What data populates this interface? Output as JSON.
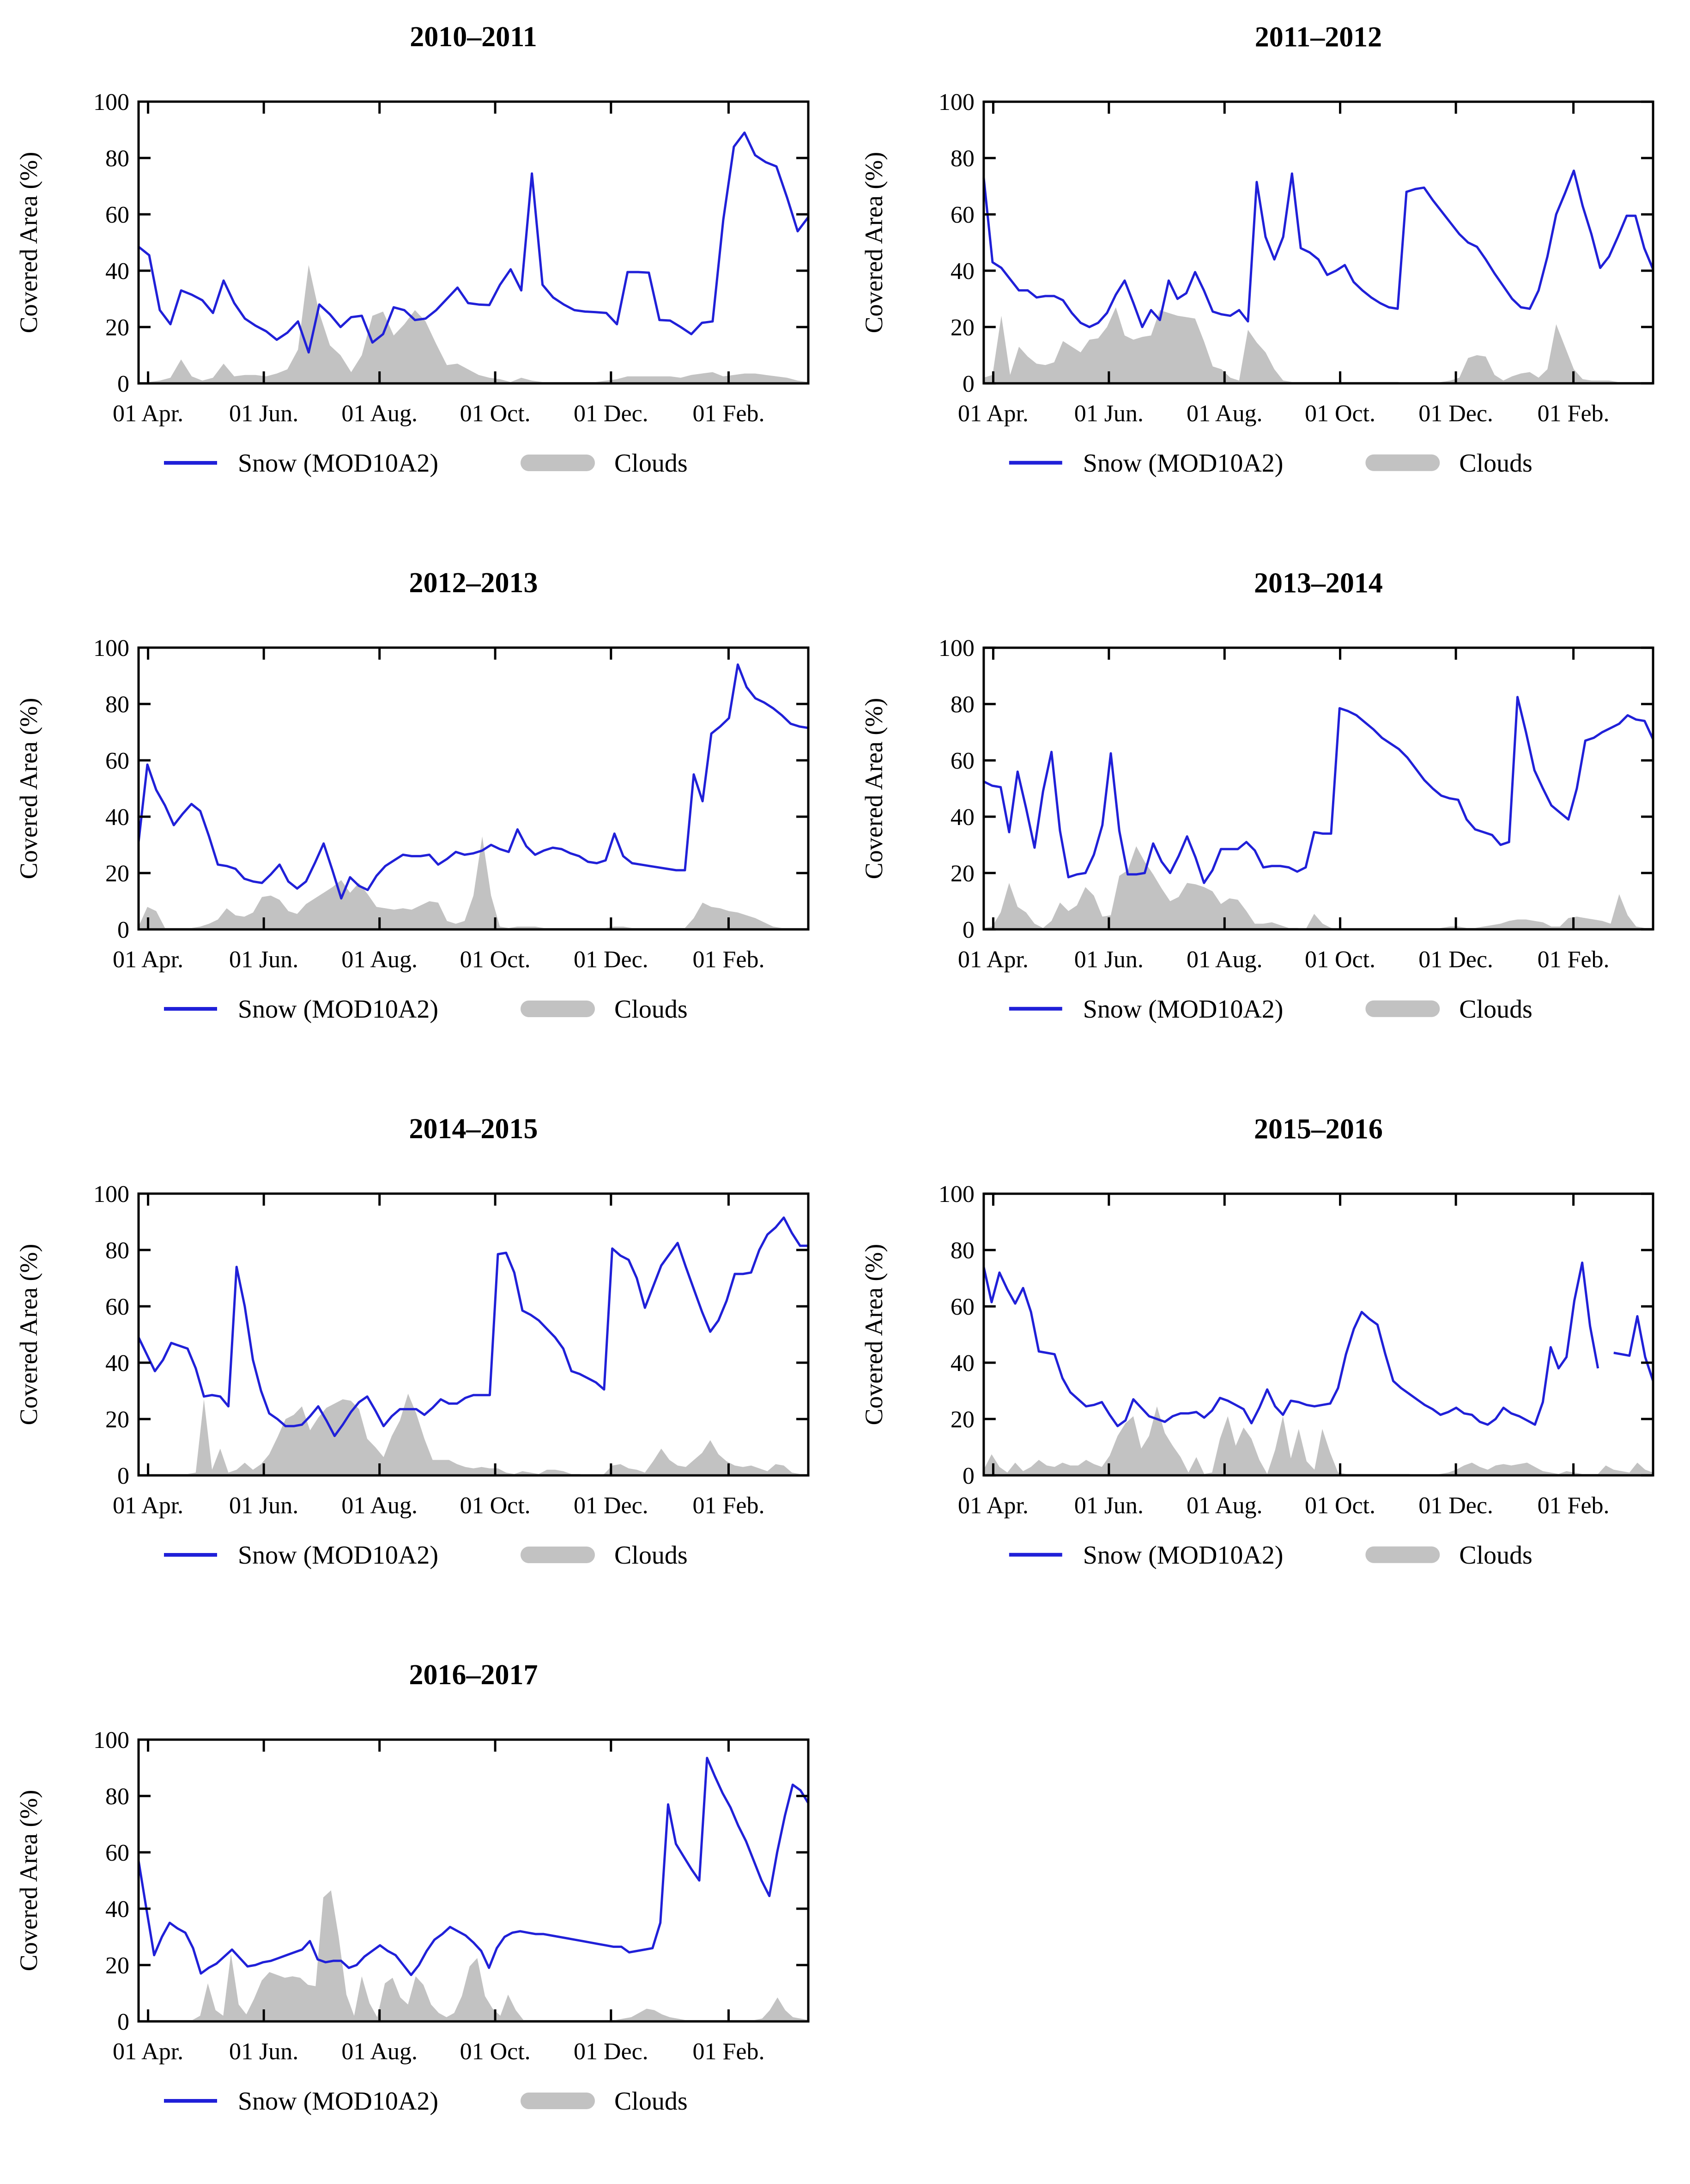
{
  "page": {
    "background": "#ffffff"
  },
  "style": {
    "snow_color": "#2020d8",
    "cloud_color": "#c2c2c2",
    "axis_color": "#000000",
    "ylim": [
      0,
      100
    ]
  },
  "axes": {
    "ylabel": "Covered Area (%)",
    "y_ticks": [
      0,
      20,
      40,
      60,
      80,
      100
    ],
    "x_ticks": [
      {
        "label": "01 Apr.",
        "f": 0.0142
      },
      {
        "label": "01 Jun.",
        "f": 0.187
      },
      {
        "label": "01 Aug.",
        "f": 0.3598
      },
      {
        "label": "01 Oct.",
        "f": 0.5325
      },
      {
        "label": "01 Dec.",
        "f": 0.7054
      },
      {
        "label": "01 Feb.",
        "f": 0.881
      }
    ]
  },
  "legend": {
    "snow_label": "Snow (MOD10A2)",
    "clouds_label": "Clouds"
  },
  "chart_data": [
    {
      "type": "line+area",
      "title": "2010–2011",
      "snow": [
        48.5,
        45.5,
        26,
        21,
        33,
        31.5,
        29.5,
        25,
        36.5,
        28.5,
        23,
        20.5,
        18.5,
        15.5,
        18,
        22,
        11,
        28,
        24.5,
        20,
        23.5,
        24,
        14.5,
        17.5,
        27,
        26,
        22.5,
        23,
        26,
        30,
        34,
        28.5,
        28,
        27.8,
        35,
        40.5,
        33,
        74.5,
        35,
        30.5,
        28,
        26,
        25.5,
        25.3,
        25,
        21,
        39.5,
        39.5,
        39.3,
        22.5,
        22.3,
        20,
        17.5,
        21.5,
        22,
        58,
        84,
        89,
        81,
        78.5,
        77,
        66,
        54,
        59
      ],
      "clouds": [
        0.5,
        0.5,
        1,
        2,
        8.5,
        2.5,
        1,
        2,
        7,
        2.5,
        3,
        3,
        2.5,
        3.5,
        5,
        12,
        42,
        25,
        13.5,
        10,
        4,
        10,
        24,
        25.5,
        17,
        21,
        26,
        22,
        14,
        6.5,
        7,
        5,
        3,
        2,
        1.5,
        0.5,
        2,
        1,
        0.5,
        0.5,
        0.5,
        0.5,
        0.5,
        0.5,
        1,
        1.5,
        2.5,
        2.5,
        2.5,
        2.5,
        2.5,
        2,
        3,
        3.5,
        4,
        2.5,
        3,
        3.5,
        3.5,
        3,
        2.5,
        2,
        1,
        0.5
      ]
    },
    {
      "type": "line+area",
      "title": "2011–2012",
      "snow": [
        73,
        43,
        41,
        37,
        33,
        33,
        30.5,
        31,
        31,
        29.5,
        25,
        21.5,
        20,
        21.5,
        25,
        31.5,
        36.5,
        28.5,
        20,
        26,
        22.5,
        36.5,
        30,
        32,
        39.5,
        33,
        25.5,
        24.5,
        24,
        26,
        22,
        71.5,
        52,
        44,
        52,
        74.5,
        48,
        46.5,
        44,
        38.5,
        40,
        42,
        36,
        33,
        30.5,
        28.5,
        27,
        26.5,
        68,
        69,
        69.5,
        65,
        61,
        57,
        53,
        50,
        48.5,
        44,
        39,
        34.5,
        30,
        27,
        26.5,
        33,
        45,
        60,
        67.5,
        75.5,
        63,
        53,
        41,
        45,
        52,
        59.5,
        59.5,
        48,
        40.5
      ],
      "clouds": [
        2,
        3,
        24,
        3,
        13,
        9.5,
        7,
        6.5,
        7.5,
        15,
        13,
        11,
        15.5,
        16,
        20,
        27,
        17,
        15.5,
        16.5,
        17,
        26,
        25,
        24,
        23.5,
        23,
        15,
        6,
        5,
        2,
        1,
        19,
        14.5,
        11,
        5,
        1,
        0.5,
        0.5,
        0.5,
        0.5,
        0.5,
        0.5,
        0.5,
        0.5,
        0.5,
        0.5,
        0.5,
        0.5,
        0.5,
        0,
        0,
        0,
        0,
        0.5,
        1,
        2,
        9,
        10,
        9.5,
        3,
        1,
        2.5,
        3.5,
        4,
        2,
        5,
        21,
        13,
        5,
        1.5,
        1,
        1,
        1,
        0.5,
        0.5,
        0.5,
        0.5,
        0.5
      ]
    },
    {
      "type": "line+area",
      "title": "2012–2013",
      "snow": [
        31,
        58.5,
        49.5,
        44,
        37,
        41,
        44.5,
        42,
        33,
        23,
        22.5,
        21.5,
        18,
        17,
        16.5,
        19.5,
        23,
        17,
        14.5,
        17,
        23.5,
        30.5,
        21,
        11,
        18.5,
        15.5,
        14,
        19,
        22.5,
        24.5,
        26.5,
        26,
        26,
        26.5,
        23,
        25,
        27.5,
        26.5,
        27,
        28,
        30,
        28.5,
        27.5,
        35.5,
        29.5,
        26.5,
        28,
        29,
        28.5,
        27,
        26,
        24,
        23.5,
        24.5,
        34,
        26,
        23.5,
        23,
        22.5,
        22,
        21.5,
        21,
        21,
        55,
        45.5,
        69.5,
        72,
        75,
        94,
        86,
        82,
        80.5,
        78.5,
        76,
        73,
        72,
        71.5
      ],
      "clouds": [
        1,
        8,
        6.5,
        0.5,
        0.5,
        0.5,
        0.5,
        1,
        2,
        3.5,
        7.5,
        5,
        4.5,
        6,
        11.5,
        12,
        10.5,
        6.5,
        5.5,
        9,
        11,
        13,
        15,
        17.5,
        13,
        16.5,
        12.5,
        8,
        7.5,
        7,
        7.5,
        7,
        8.5,
        10,
        9.5,
        3,
        2,
        3,
        12,
        33,
        12,
        1,
        0.5,
        1,
        1,
        1,
        0.5,
        0.5,
        0.5,
        0.5,
        0.5,
        0.5,
        0.5,
        0.5,
        1,
        1,
        0.5,
        0.5,
        0.5,
        0.5,
        0.5,
        0.5,
        0.5,
        4,
        9.5,
        8,
        7.5,
        6.5,
        6,
        5,
        4,
        2.5,
        1,
        0.5,
        0.5,
        0.5,
        0.5
      ]
    },
    {
      "type": "line+area",
      "title": "2013–2014",
      "snow": [
        52.5,
        51,
        50.5,
        34.5,
        56,
        43,
        29,
        49,
        63,
        35,
        18.5,
        19.5,
        20,
        26.5,
        37,
        62.5,
        35,
        19.5,
        19.5,
        20,
        30.5,
        24,
        20,
        26,
        33,
        25.5,
        16.5,
        21,
        28.5,
        28.5,
        28.5,
        31,
        28,
        22,
        22.5,
        22.5,
        22,
        20.5,
        22,
        34.5,
        34,
        34,
        78.5,
        77.5,
        76,
        73.5,
        71,
        68,
        66,
        64,
        61,
        57,
        53,
        50,
        47.5,
        46.5,
        46,
        39,
        35.5,
        34.5,
        33.5,
        30,
        31,
        82.5,
        70,
        56.5,
        50,
        44,
        41.5,
        39,
        50,
        67,
        68,
        70,
        71.5,
        73,
        76,
        74.5,
        74,
        67.5
      ],
      "clouds": [
        0.5,
        1,
        6,
        16.5,
        8,
        6,
        2,
        0.5,
        3,
        9.5,
        6.5,
        8.5,
        15,
        12,
        4.5,
        5,
        19,
        21,
        29.5,
        24,
        19.5,
        14.5,
        10,
        11.5,
        16.5,
        16,
        15,
        13.5,
        9,
        11,
        10.5,
        6.5,
        2,
        2,
        2.5,
        1.5,
        0.5,
        0.5,
        0,
        5.5,
        2,
        0.5,
        0,
        0,
        0,
        0,
        0,
        0,
        0,
        0,
        0,
        0,
        0,
        0,
        0.5,
        1,
        1,
        0.5,
        0.5,
        1,
        1.5,
        2,
        3,
        3.5,
        3.5,
        3,
        2.5,
        1,
        1,
        4,
        4.5,
        4,
        3.5,
        3,
        2,
        12.5,
        5,
        1,
        0.5,
        0.5
      ]
    },
    {
      "type": "line+area",
      "title": "2014–2015",
      "snow": [
        49,
        43,
        37,
        41,
        47,
        46,
        45,
        38,
        28,
        28.5,
        28,
        24.5,
        74,
        60,
        41,
        30,
        22,
        20,
        17.5,
        17.5,
        18,
        21,
        24.5,
        19.5,
        14,
        18,
        22.5,
        26,
        28,
        23,
        17.5,
        21,
        23.5,
        23.5,
        23.5,
        21.5,
        24,
        27,
        25.5,
        25.5,
        27.5,
        28.5,
        28.5,
        28.5,
        78.5,
        79,
        72,
        58.5,
        57,
        55,
        52,
        49,
        45,
        37,
        36,
        34.5,
        33,
        30.5,
        80.5,
        78,
        76.5,
        70,
        59.5,
        67,
        74.5,
        78.5,
        82.5,
        74,
        66,
        58,
        51,
        55,
        62,
        71.5,
        71.5,
        72,
        80,
        85.5,
        88,
        91.5,
        86,
        81.5,
        81.5
      ],
      "clouds": [
        0.5,
        0.5,
        0.5,
        0.5,
        0.5,
        0.5,
        0.5,
        1,
        27,
        2,
        9.5,
        1,
        2,
        4.5,
        2,
        4,
        7.5,
        13.5,
        20,
        21.5,
        24.5,
        16,
        20.5,
        24,
        25.5,
        27,
        26.5,
        23.5,
        13,
        10,
        6.5,
        14,
        19.5,
        29,
        22,
        13,
        5.5,
        5.5,
        5.5,
        4,
        3,
        2.5,
        3,
        2.5,
        2.5,
        1,
        0.5,
        1.5,
        1,
        0.5,
        2,
        2,
        1.5,
        0.5,
        0.5,
        0,
        0,
        0.5,
        3.5,
        4,
        2.5,
        2,
        1,
        5,
        9.5,
        5.5,
        3.5,
        3,
        5.5,
        8,
        12.5,
        7.5,
        5,
        3.5,
        3,
        3.5,
        2.5,
        1.5,
        4,
        3.5,
        1,
        0.5,
        0.5
      ]
    },
    {
      "type": "line+area",
      "title": "2015–2016",
      "snow": [
        74,
        61.5,
        72,
        66,
        61,
        66.5,
        58,
        44,
        43.5,
        43,
        34.5,
        29.5,
        27,
        24.5,
        25,
        26,
        21.5,
        17.5,
        19.5,
        27,
        24,
        21,
        20,
        19,
        21,
        22,
        22,
        22.5,
        20.5,
        23,
        27.5,
        26.5,
        25,
        23.5,
        18.5,
        24,
        30.5,
        24.5,
        21.5,
        26.5,
        26,
        25,
        24.5,
        25,
        25.5,
        31,
        43,
        52,
        58,
        55.5,
        53.5,
        43,
        33.5,
        31,
        29,
        27,
        25,
        23.5,
        21.5,
        22.5,
        24,
        22,
        21.5,
        19,
        18,
        20,
        24,
        22,
        21,
        19.5,
        18,
        26,
        45.5,
        38,
        42,
        62,
        75.5,
        53,
        38,
        null,
        43.5,
        43,
        42.5,
        56.5,
        42,
        33.5
      ],
      "clouds": [
        2,
        7.5,
        3,
        1,
        4.5,
        1.5,
        3,
        5.5,
        3.5,
        3,
        4.5,
        3.5,
        3.5,
        5.5,
        4,
        3,
        7,
        14,
        18.5,
        21,
        9.5,
        14,
        24.5,
        15,
        10.5,
        6.5,
        1,
        6.5,
        0.5,
        1,
        13,
        21,
        10.5,
        17,
        13,
        5.5,
        0.5,
        9,
        21,
        6,
        16.5,
        5,
        2,
        16.5,
        8,
        1,
        0.5,
        0.5,
        0.5,
        0.5,
        0.5,
        0.5,
        0.5,
        0.5,
        0.5,
        0,
        0,
        0,
        0.5,
        1,
        2,
        3.5,
        4.5,
        3,
        2,
        3.5,
        4,
        3.5,
        4,
        4.5,
        3,
        1.5,
        1,
        0.5,
        1.5,
        1,
        0.5,
        0.5,
        0.5,
        3.5,
        2,
        1.5,
        1,
        4.5,
        2,
        1
      ]
    },
    {
      "type": "line+area",
      "title": "2016–2017",
      "snow": [
        57,
        40,
        23.5,
        30,
        35,
        33,
        31.5,
        26,
        17,
        19,
        20.5,
        23,
        25.5,
        22.5,
        19.5,
        20,
        21,
        21.5,
        22.5,
        23.5,
        24.5,
        25.5,
        28.5,
        22,
        21,
        21.5,
        21.5,
        19,
        20,
        23,
        25,
        27,
        25,
        23.5,
        20,
        16.5,
        20,
        25,
        29,
        31,
        33.5,
        32,
        30.5,
        28,
        25,
        19,
        26,
        30,
        31.5,
        32,
        31.5,
        31,
        31,
        30.5,
        30,
        29.5,
        29,
        28.5,
        28,
        27.5,
        27,
        26.5,
        26.5,
        24.5,
        25,
        25.5,
        26,
        35,
        77,
        63,
        58.5,
        54,
        50,
        93.5,
        87,
        81,
        76,
        69.5,
        64,
        57,
        50,
        44.5,
        60,
        73,
        84,
        82,
        77.5
      ],
      "clouds": [
        0.5,
        0.5,
        0.5,
        0.5,
        0.5,
        0.5,
        0.5,
        0.5,
        2,
        13.5,
        4,
        2,
        24,
        6,
        2.5,
        8,
        14.5,
        17.5,
        16.5,
        15.5,
        16,
        15.5,
        13,
        12.5,
        44,
        46.5,
        30,
        9.5,
        2,
        16,
        6.5,
        1.5,
        13.5,
        15.5,
        8.5,
        6,
        16,
        13,
        6,
        3,
        1.5,
        3,
        9,
        19.5,
        22.5,
        9,
        4.5,
        2,
        9.5,
        4,
        0.5,
        0.5,
        0.5,
        0.5,
        0.5,
        0.5,
        0.5,
        0.5,
        0.5,
        0.5,
        0.5,
        0.5,
        0.5,
        1,
        1.5,
        3,
        4.5,
        4,
        2.5,
        1.5,
        1,
        0.5,
        0.5,
        0.5,
        0.5,
        0.5,
        0.5,
        0.5,
        0.5,
        0.5,
        0.5,
        1,
        4,
        8.5,
        4,
        1.5,
        1,
        0.5
      ]
    }
  ]
}
